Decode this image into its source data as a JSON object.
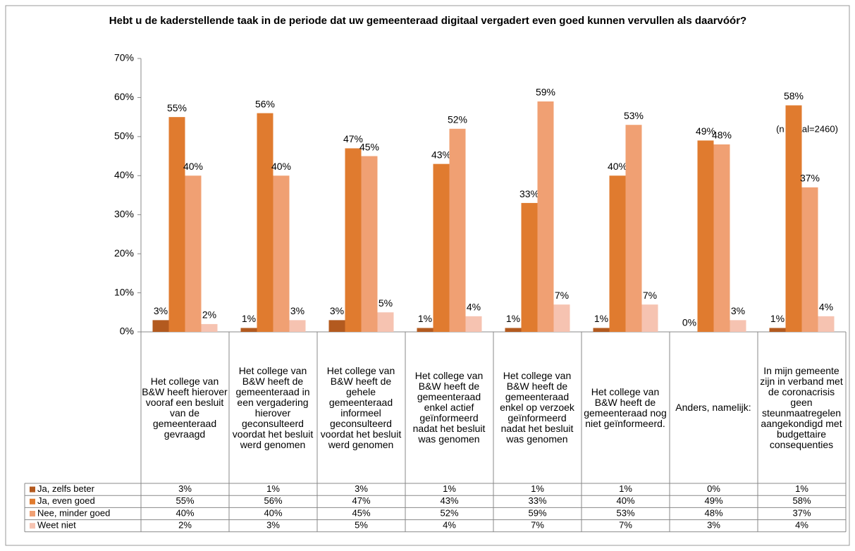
{
  "chart_data": {
    "type": "bar",
    "title": "Hebt u de kaderstellende taak in de periode dat uw gemeenteraad digitaal vergadert even goed kunnen vervullen als daarvóór?",
    "annotation": "(n totaal=2460)",
    "categories": [
      "Het college van B&W heeft hierover vooraf een besluit van de gemeenteraad gevraagd",
      "Het college van B&W heeft de gemeenteraad in een vergadering hierover geconsulteerd voordat het besluit werd genomen",
      "Het college van B&W heeft de gehele gemeenteraad informeel geconsulteerd voordat het besluit werd genomen",
      "Het college van B&W heeft de gemeenteraad enkel actief geïnformeerd nadat het besluit was genomen",
      "Het college van B&W heeft de gemeenteraad enkel op verzoek geïnformeerd nadat het besluit was genomen",
      "Het college van B&W heeft de gemeenteraad nog niet geïnformeerd.",
      "Anders, namelijk:",
      "In mijn gemeente zijn in verband met de coronacrisis geen steunmaatregelen aangekondigd met budgettaire consequenties"
    ],
    "series": [
      {
        "name": "Ja, zelfs beter",
        "color": "#b35a1f",
        "values": [
          3,
          1,
          3,
          1,
          1,
          1,
          0,
          1
        ],
        "value_labels": [
          "3%",
          "1%",
          "3%",
          "1%",
          "1%",
          "1%",
          "0%",
          "1%"
        ]
      },
      {
        "name": "Ja, even goed",
        "color": "#e07b2f",
        "values": [
          55,
          56,
          47,
          43,
          33,
          40,
          49,
          58
        ],
        "value_labels": [
          "55%",
          "56%",
          "47%",
          "43%",
          "33%",
          "40%",
          "49%",
          "58%"
        ]
      },
      {
        "name": "Nee, minder goed",
        "color": "#f0a073",
        "values": [
          40,
          40,
          45,
          52,
          59,
          53,
          48,
          37
        ],
        "value_labels": [
          "40%",
          "40%",
          "45%",
          "52%",
          "59%",
          "53%",
          "48%",
          "37%"
        ]
      },
      {
        "name": "Weet niet",
        "color": "#f6c3b1",
        "values": [
          2,
          3,
          5,
          4,
          7,
          7,
          3,
          4
        ],
        "value_labels": [
          "2%",
          "3%",
          "5%",
          "4%",
          "7%",
          "7%",
          "3%",
          "4%"
        ]
      }
    ],
    "ylim": [
      0,
      70
    ],
    "yticks": [
      {
        "value": 0,
        "label": "0%"
      },
      {
        "value": 10,
        "label": "10%"
      },
      {
        "value": 20,
        "label": "20%"
      },
      {
        "value": 30,
        "label": "30%"
      },
      {
        "value": 40,
        "label": "40%"
      },
      {
        "value": 50,
        "label": "50%"
      },
      {
        "value": 60,
        "label": "60%"
      },
      {
        "value": 70,
        "label": "70%"
      }
    ]
  }
}
